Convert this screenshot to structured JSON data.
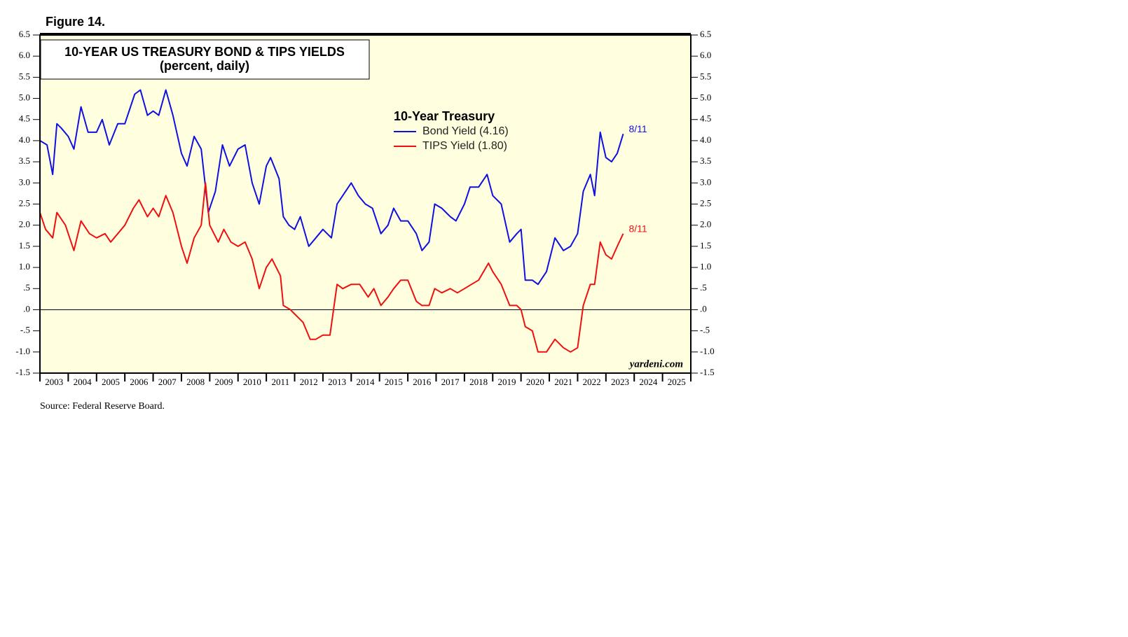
{
  "chart_data": {
    "type": "line",
    "figure_label": "Figure 14.",
    "title": "10-YEAR US TREASURY BOND & TIPS YIELDS",
    "subtitle": "(percent, daily)",
    "legend_title": "10-Year Treasury",
    "watermark": "yardeni.com",
    "source": "Source: Federal Reserve Board.",
    "xlim": [
      2003,
      2026
    ],
    "xticks": [
      2003,
      2004,
      2005,
      2006,
      2007,
      2008,
      2009,
      2010,
      2011,
      2012,
      2013,
      2014,
      2015,
      2016,
      2017,
      2018,
      2019,
      2020,
      2021,
      2022,
      2023,
      2024,
      2025
    ],
    "ylim": [
      -1.5,
      6.5
    ],
    "yticks": [
      {
        "value": 6.5,
        "label": "6.5"
      },
      {
        "value": 6,
        "label": "6.0"
      },
      {
        "value": 5.5,
        "label": "5.5"
      },
      {
        "value": 5,
        "label": "5.0"
      },
      {
        "value": 4.5,
        "label": "4.5"
      },
      {
        "value": 4,
        "label": "4.0"
      },
      {
        "value": 3.5,
        "label": "3.5"
      },
      {
        "value": 3,
        "label": "3.0"
      },
      {
        "value": 2.5,
        "label": "2.5"
      },
      {
        "value": 2,
        "label": "2.0"
      },
      {
        "value": 1.5,
        "label": "1.5"
      },
      {
        "value": 1,
        "label": "1.0"
      },
      {
        "value": 0.5,
        "label": ".5"
      },
      {
        "value": 0,
        "label": ".0"
      },
      {
        "value": -0.5,
        "label": "-.5"
      },
      {
        "value": -1,
        "label": "-1.0"
      },
      {
        "value": -1.5,
        "label": "-1.5"
      }
    ],
    "y2lim": [
      -1.5,
      6.5
    ],
    "y2ticks": [
      {
        "value": 6.5,
        "label": "6.5"
      },
      {
        "value": 6,
        "label": "6.0"
      },
      {
        "value": 5.5,
        "label": "5.5"
      },
      {
        "value": 5,
        "label": "5.0"
      },
      {
        "value": 4.5,
        "label": "4.5"
      },
      {
        "value": 4,
        "label": "4.0"
      },
      {
        "value": 3.5,
        "label": "3.5"
      },
      {
        "value": 3,
        "label": "3.0"
      },
      {
        "value": 2.5,
        "label": "2.5"
      },
      {
        "value": 2,
        "label": "2.0"
      },
      {
        "value": 1.5,
        "label": "1.5"
      },
      {
        "value": 1,
        "label": "1.0"
      },
      {
        "value": 0.5,
        "label": ".5"
      },
      {
        "value": 0,
        "label": ".0"
      },
      {
        "value": -0.5,
        "label": "-.5"
      },
      {
        "value": -1,
        "label": "-1.0"
      },
      {
        "value": -1.5,
        "label": "-1.5"
      }
    ],
    "series": [
      {
        "name": "Bond Yield (4.16)",
        "color": "#1010e0",
        "end_label": "8/11",
        "x": [
          2003.0,
          2003.25,
          2003.45,
          2003.6,
          2003.75,
          2004.0,
          2004.2,
          2004.45,
          2004.7,
          2005.0,
          2005.2,
          2005.45,
          2005.75,
          2006.0,
          2006.35,
          2006.55,
          2006.8,
          2007.0,
          2007.2,
          2007.45,
          2007.7,
          2008.0,
          2008.2,
          2008.45,
          2008.7,
          2008.95,
          2009.2,
          2009.45,
          2009.7,
          2010.0,
          2010.25,
          2010.5,
          2010.75,
          2011.0,
          2011.15,
          2011.45,
          2011.6,
          2011.8,
          2012.0,
          2012.2,
          2012.5,
          2012.75,
          2013.0,
          2013.3,
          2013.5,
          2013.7,
          2014.0,
          2014.25,
          2014.5,
          2014.75,
          2015.05,
          2015.3,
          2015.5,
          2015.75,
          2016.0,
          2016.3,
          2016.5,
          2016.75,
          2016.95,
          2017.2,
          2017.5,
          2017.7,
          2018.0,
          2018.2,
          2018.5,
          2018.8,
          2019.0,
          2019.3,
          2019.6,
          2019.85,
          2020.0,
          2020.15,
          2020.4,
          2020.6,
          2020.9,
          2021.2,
          2021.5,
          2021.75,
          2022.0,
          2022.2,
          2022.45,
          2022.6,
          2022.8,
          2023.0,
          2023.2,
          2023.4,
          2023.61
        ],
        "values": [
          4.0,
          3.9,
          3.2,
          4.4,
          4.3,
          4.1,
          3.8,
          4.8,
          4.2,
          4.2,
          4.5,
          3.9,
          4.4,
          4.4,
          5.1,
          5.2,
          4.6,
          4.7,
          4.6,
          5.2,
          4.6,
          3.7,
          3.4,
          4.1,
          3.8,
          2.3,
          2.8,
          3.9,
          3.4,
          3.8,
          3.9,
          3.0,
          2.5,
          3.4,
          3.6,
          3.1,
          2.2,
          2.0,
          1.9,
          2.2,
          1.5,
          1.7,
          1.9,
          1.7,
          2.5,
          2.7,
          3.0,
          2.7,
          2.5,
          2.4,
          1.8,
          2.0,
          2.4,
          2.1,
          2.1,
          1.8,
          1.4,
          1.6,
          2.5,
          2.4,
          2.2,
          2.1,
          2.5,
          2.9,
          2.9,
          3.2,
          2.7,
          2.5,
          1.6,
          1.8,
          1.9,
          0.7,
          0.7,
          0.6,
          0.9,
          1.7,
          1.4,
          1.5,
          1.8,
          2.8,
          3.2,
          2.7,
          4.2,
          3.6,
          3.5,
          3.7,
          4.16
        ]
      },
      {
        "name": "TIPS Yield (1.80)",
        "color": "#ee1010",
        "end_label": "8/11",
        "x": [
          2003.0,
          2003.2,
          2003.45,
          2003.6,
          2003.9,
          2004.2,
          2004.45,
          2004.75,
          2005.0,
          2005.3,
          2005.5,
          2005.75,
          2006.0,
          2006.3,
          2006.5,
          2006.8,
          2007.0,
          2007.2,
          2007.45,
          2007.7,
          2008.0,
          2008.2,
          2008.45,
          2008.7,
          2008.85,
          2009.0,
          2009.3,
          2009.5,
          2009.75,
          2010.0,
          2010.25,
          2010.5,
          2010.75,
          2011.0,
          2011.2,
          2011.5,
          2011.6,
          2011.85,
          2012.0,
          2012.3,
          2012.55,
          2012.75,
          2013.0,
          2013.25,
          2013.5,
          2013.7,
          2014.0,
          2014.3,
          2014.6,
          2014.8,
          2015.05,
          2015.3,
          2015.5,
          2015.75,
          2016.0,
          2016.3,
          2016.5,
          2016.75,
          2016.95,
          2017.2,
          2017.5,
          2017.75,
          2018.0,
          2018.25,
          2018.5,
          2018.85,
          2019.0,
          2019.3,
          2019.6,
          2019.85,
          2020.0,
          2020.15,
          2020.4,
          2020.6,
          2020.9,
          2021.2,
          2021.5,
          2021.75,
          2022.0,
          2022.2,
          2022.45,
          2022.6,
          2022.8,
          2023.0,
          2023.2,
          2023.4,
          2023.61
        ],
        "values": [
          2.3,
          1.9,
          1.7,
          2.3,
          2.0,
          1.4,
          2.1,
          1.8,
          1.7,
          1.8,
          1.6,
          1.8,
          2.0,
          2.4,
          2.6,
          2.2,
          2.4,
          2.2,
          2.7,
          2.3,
          1.5,
          1.1,
          1.7,
          2.0,
          3.0,
          2.0,
          1.6,
          1.9,
          1.6,
          1.5,
          1.6,
          1.2,
          0.5,
          1.0,
          1.2,
          0.8,
          0.1,
          0.0,
          -0.1,
          -0.3,
          -0.7,
          -0.7,
          -0.6,
          -0.6,
          0.6,
          0.5,
          0.6,
          0.6,
          0.3,
          0.5,
          0.1,
          0.3,
          0.5,
          0.7,
          0.7,
          0.2,
          0.1,
          0.1,
          0.5,
          0.4,
          0.5,
          0.4,
          0.5,
          0.6,
          0.7,
          1.1,
          0.9,
          0.6,
          0.1,
          0.1,
          0.0,
          -0.4,
          -0.5,
          -1.0,
          -1.0,
          -0.7,
          -0.9,
          -1.0,
          -0.9,
          0.1,
          0.6,
          0.6,
          1.6,
          1.3,
          1.2,
          1.5,
          1.8
        ]
      }
    ]
  }
}
